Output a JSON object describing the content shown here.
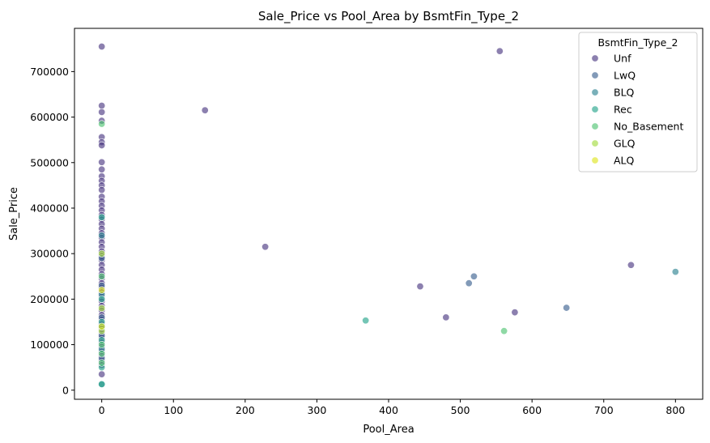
{
  "chart_data": {
    "type": "scatter",
    "title": "Sale_Price vs Pool_Area by BsmtFin_Type_2",
    "xlabel": "Pool_Area",
    "ylabel": "Sale_Price",
    "xlim": [
      -38,
      838
    ],
    "ylim": [
      -20000,
      795000
    ],
    "xticks": [
      0,
      100,
      200,
      300,
      400,
      500,
      600,
      700,
      800
    ],
    "yticks": [
      0,
      100000,
      200000,
      300000,
      400000,
      500000,
      600000,
      700000
    ],
    "grid": false,
    "legend": {
      "title": "BsmtFin_Type_2",
      "placement": "top-right",
      "entries": [
        "Unf",
        "LwQ",
        "BLQ",
        "Rec",
        "No_Basement",
        "GLQ",
        "ALQ"
      ]
    },
    "colors": {
      "Unf": "#46327e",
      "LwQ": "#365c8d",
      "BLQ": "#277f8e",
      "Rec": "#1fa187",
      "No_Basement": "#4ac16d",
      "GLQ": "#a0da39",
      "ALQ": "#dde318"
    },
    "series": [
      {
        "name": "Unf",
        "points": [
          [
            0,
            755000
          ],
          [
            0,
            625000
          ],
          [
            0,
            611000
          ],
          [
            0,
            592000
          ],
          [
            0,
            556000
          ],
          [
            0,
            545000
          ],
          [
            0,
            538000
          ],
          [
            0,
            501000
          ],
          [
            0,
            485000
          ],
          [
            0,
            470000
          ],
          [
            0,
            460000
          ],
          [
            0,
            450000
          ],
          [
            0,
            440000
          ],
          [
            0,
            425000
          ],
          [
            0,
            415000
          ],
          [
            0,
            405000
          ],
          [
            0,
            395000
          ],
          [
            0,
            385000
          ],
          [
            0,
            375000
          ],
          [
            0,
            365000
          ],
          [
            0,
            355000
          ],
          [
            0,
            345000
          ],
          [
            0,
            335000
          ],
          [
            0,
            325000
          ],
          [
            0,
            315000
          ],
          [
            0,
            305000
          ],
          [
            0,
            295000
          ],
          [
            0,
            285000
          ],
          [
            0,
            275000
          ],
          [
            0,
            265000
          ],
          [
            0,
            255000
          ],
          [
            0,
            245000
          ],
          [
            0,
            235000
          ],
          [
            0,
            225000
          ],
          [
            0,
            215000
          ],
          [
            0,
            205000
          ],
          [
            0,
            195000
          ],
          [
            0,
            185000
          ],
          [
            0,
            175000
          ],
          [
            0,
            165000
          ],
          [
            0,
            155000
          ],
          [
            0,
            145000
          ],
          [
            0,
            135000
          ],
          [
            0,
            125000
          ],
          [
            0,
            115000
          ],
          [
            0,
            105000
          ],
          [
            0,
            95000
          ],
          [
            0,
            85000
          ],
          [
            0,
            75000
          ],
          [
            0,
            65000
          ],
          [
            0,
            55000
          ],
          [
            0,
            35000
          ],
          [
            144,
            615000
          ],
          [
            555,
            745000
          ],
          [
            228,
            315000
          ],
          [
            738,
            275000
          ],
          [
            444,
            228000
          ],
          [
            480,
            160000
          ],
          [
            576,
            171000
          ]
        ]
      },
      {
        "name": "LwQ",
        "points": [
          [
            0,
            290000
          ],
          [
            0,
            230000
          ],
          [
            0,
            160000
          ],
          [
            0,
            120000
          ],
          [
            0,
            70000
          ],
          [
            512,
            235000
          ],
          [
            519,
            250000
          ],
          [
            648,
            181000
          ]
        ]
      },
      {
        "name": "BLQ",
        "points": [
          [
            0,
            340000
          ],
          [
            0,
            210000
          ],
          [
            0,
            140000
          ],
          [
            0,
            90000
          ],
          [
            0,
            12789
          ],
          [
            800,
            260000
          ]
        ]
      },
      {
        "name": "Rec",
        "points": [
          [
            0,
            380000
          ],
          [
            0,
            200000
          ],
          [
            0,
            150000
          ],
          [
            0,
            110000
          ],
          [
            0,
            50000
          ],
          [
            0,
            13100
          ],
          [
            368,
            153000
          ]
        ]
      },
      {
        "name": "No_Basement",
        "points": [
          [
            0,
            585000
          ],
          [
            0,
            250000
          ],
          [
            0,
            100000
          ],
          [
            0,
            80000
          ],
          [
            0,
            60000
          ],
          [
            561,
            130000
          ]
        ]
      },
      {
        "name": "GLQ",
        "points": [
          [
            0,
            300000
          ],
          [
            0,
            180000
          ],
          [
            0,
            130000
          ]
        ]
      },
      {
        "name": "ALQ",
        "points": [
          [
            0,
            220000
          ],
          [
            0,
            140000
          ]
        ]
      }
    ]
  }
}
